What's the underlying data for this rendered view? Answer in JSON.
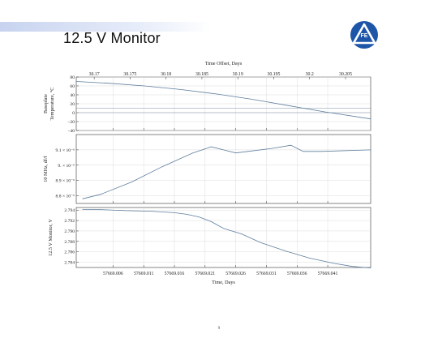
{
  "slide": {
    "title": "12.5 V Monitor",
    "logo_text": "FE",
    "page_number": "9"
  },
  "chart_data": [
    {
      "type": "line",
      "ylabel": "Baseplate Temperature, °C",
      "ylabel_lines": [
        "Baseplate",
        "Temperature, °C"
      ],
      "top_axis_label": "Time Offset, Days",
      "top_ticks": [
        30.17,
        30.175,
        30.18,
        30.185,
        30.19,
        30.195,
        30.2,
        30.205
      ],
      "top_tick_labels": [
        "30.17",
        "30.175",
        "30.18",
        "30.185",
        "30.19",
        "30.195",
        "30.2",
        "30.205"
      ],
      "xlim": [
        30.1675,
        30.2085
      ],
      "ylim": [
        -40,
        80
      ],
      "yticks": [
        -40,
        -20,
        0,
        20,
        40,
        60,
        80
      ],
      "ytick_labels": [
        "−40",
        "−20",
        "0",
        "20",
        "40",
        "60",
        "80"
      ],
      "reference_lines": [
        0,
        10
      ],
      "grid": true,
      "x": [
        30.1675,
        30.172,
        30.177,
        30.182,
        30.187,
        30.192,
        30.197,
        30.202,
        30.2085
      ],
      "values": [
        70,
        66,
        60,
        52,
        42,
        30,
        16,
        2,
        -14
      ]
    },
    {
      "type": "line",
      "ylabel": "10 MHz, df/f",
      "ylim": [
        8.75,
        9.2
      ],
      "yticks": [
        8.8,
        8.9,
        9.0,
        9.1
      ],
      "ytick_labels": [
        "8.8 × 10⁻⁶",
        "8.9 × 10⁻⁶",
        "9. × 10⁻⁶",
        "9.1 × 10⁻⁶"
      ],
      "grid": true,
      "x": [
        57669.001,
        57669.004,
        57669.009,
        57669.014,
        57669.019,
        57669.022,
        57669.024,
        57669.026,
        57669.028,
        57669.032,
        57669.035,
        57669.037,
        57669.04,
        57669.048
      ],
      "values": [
        8.78,
        8.81,
        8.89,
        8.99,
        9.08,
        9.12,
        9.1,
        9.08,
        9.09,
        9.11,
        9.13,
        9.09,
        9.09,
        9.1
      ]
    },
    {
      "type": "line",
      "ylabel": "12.5 V Monitor, V",
      "xlabel": "Time, Days",
      "xlim": [
        57669.0,
        57669.048
      ],
      "xticks": [
        57669.006,
        57669.011,
        57669.016,
        57669.021,
        57669.026,
        57669.031,
        57669.036,
        57669.041
      ],
      "xtick_labels": [
        "57669.006",
        "57669.011",
        "57669.016",
        "57669.021",
        "57669.026",
        "57669.031",
        "57669.036",
        "57669.041"
      ],
      "ylim": [
        2.783,
        2.7945
      ],
      "yticks": [
        2.784,
        2.786,
        2.788,
        2.79,
        2.792,
        2.794
      ],
      "ytick_labels": [
        "2.784",
        "2.786",
        "2.788",
        "2.790",
        "2.792",
        "2.794"
      ],
      "grid": true,
      "x": [
        57669.001,
        57669.004,
        57669.008,
        57669.012,
        57669.016,
        57669.018,
        57669.02,
        57669.022,
        57669.024,
        57669.027,
        57669.03,
        57669.034,
        57669.038,
        57669.042,
        57669.045,
        57669.048
      ],
      "values": [
        2.7941,
        2.7941,
        2.7939,
        2.7938,
        2.7935,
        2.7932,
        2.7927,
        2.7918,
        2.7905,
        2.7894,
        2.7878,
        2.7862,
        2.7848,
        2.7838,
        2.7832,
        2.7829
      ]
    }
  ]
}
